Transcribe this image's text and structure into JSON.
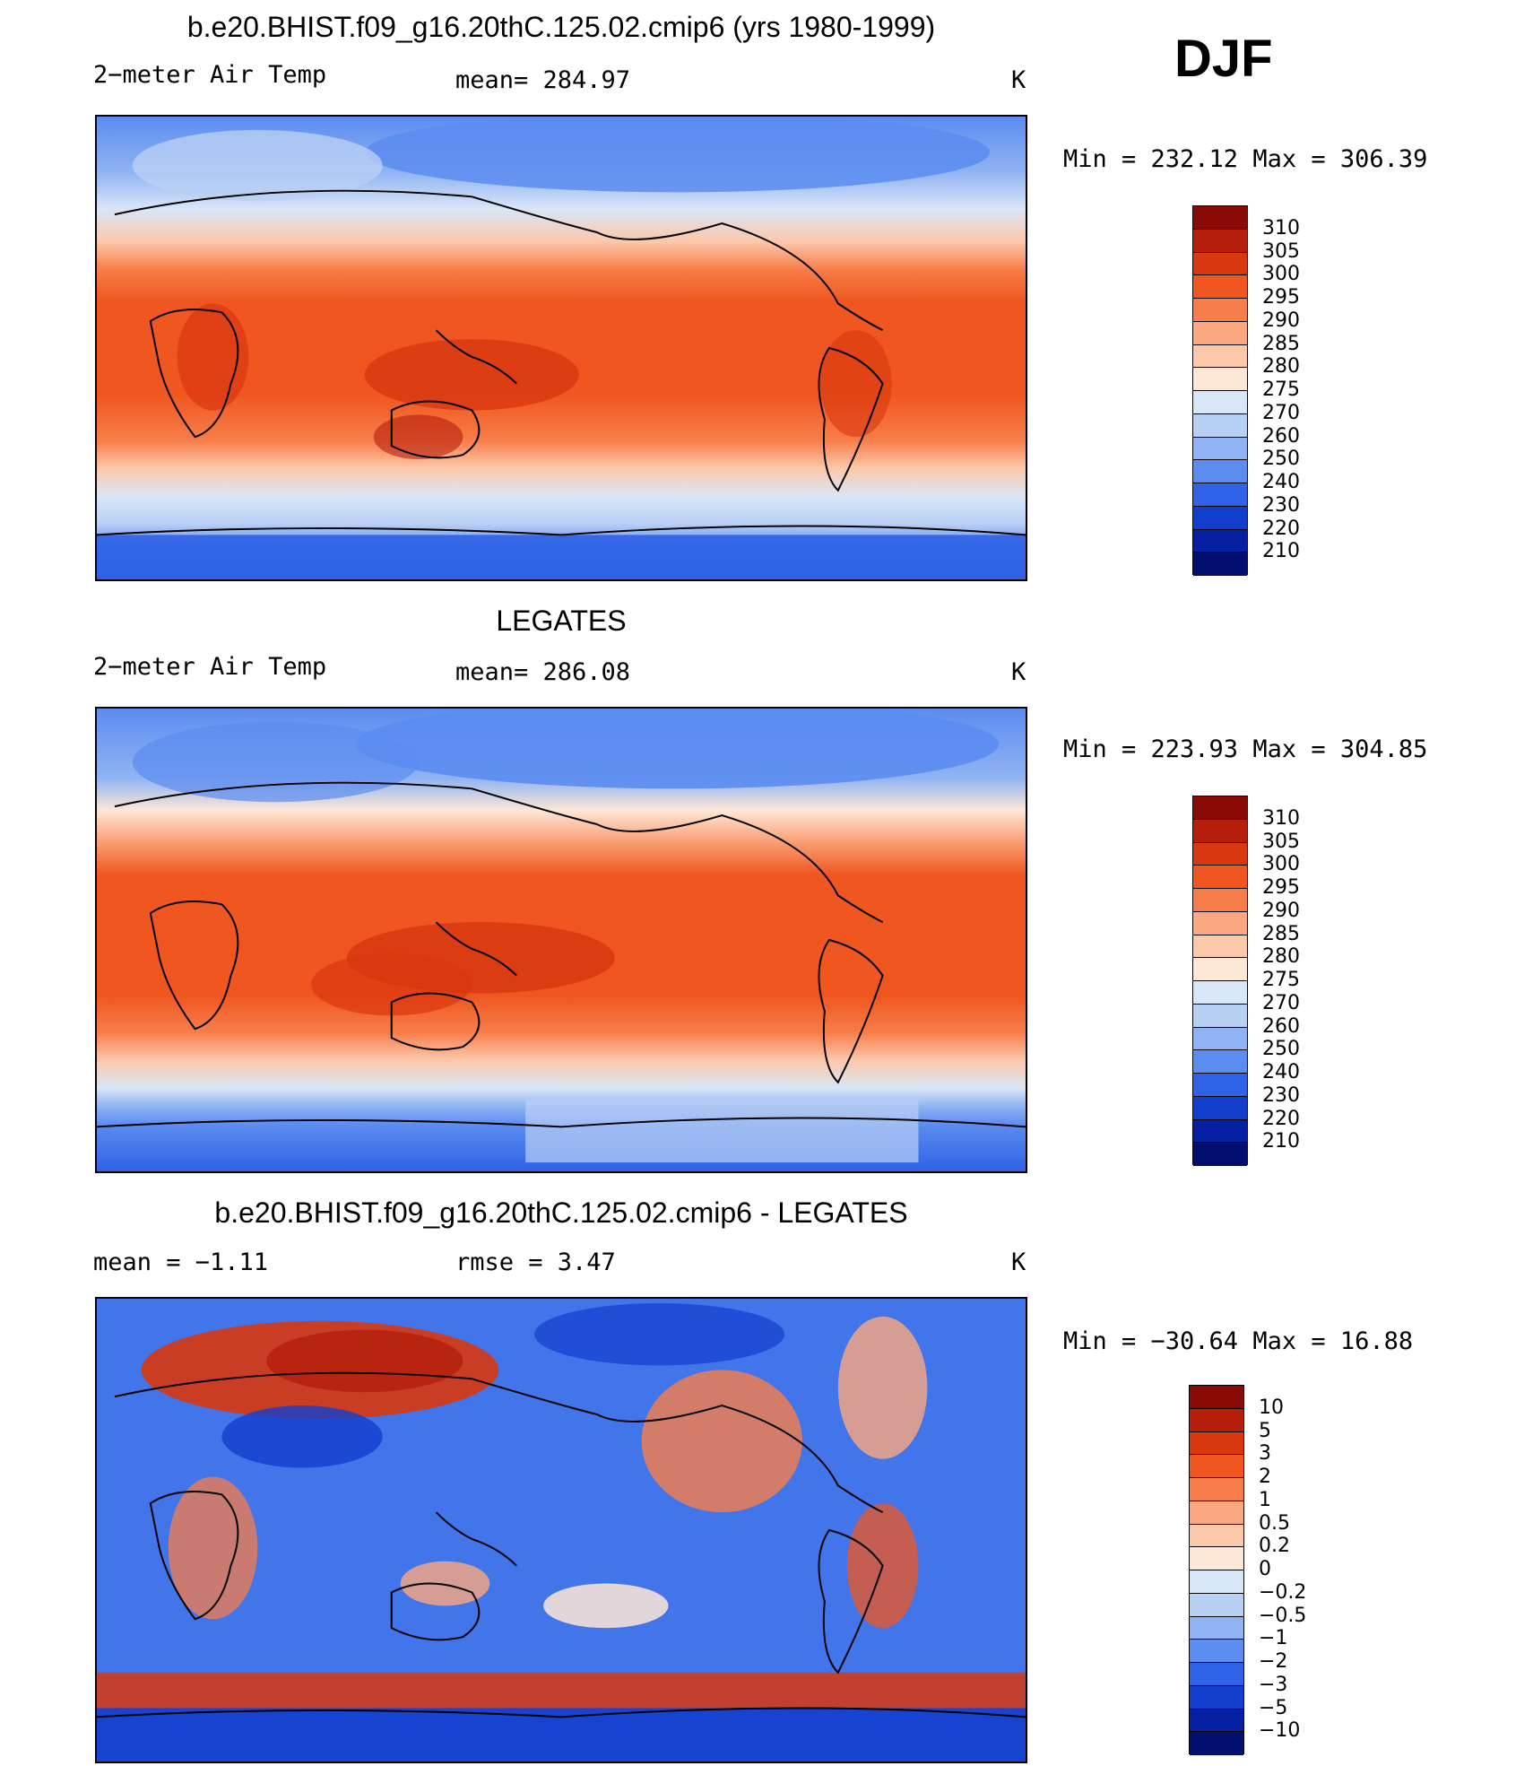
{
  "season": "DJF",
  "panels": [
    {
      "title": "b.e20.BHIST.f09_g16.20thC.125.02.cmip6 (yrs 1980-1999)",
      "left_label": "2−meter Air Temp",
      "center_label": "mean= 284.97",
      "units": "K",
      "minmax": "Min  =  232.12  Max  =  306.39",
      "colorbar_labels": [
        "310",
        "305",
        "300",
        "295",
        "290",
        "285",
        "280",
        "275",
        "270",
        "260",
        "250",
        "240",
        "230",
        "220",
        "210"
      ],
      "colors": [
        "#8a0a06",
        "#b51e0b",
        "#d8370f",
        "#f0561f",
        "#f77e4a",
        "#fba77f",
        "#fcc8aa",
        "#fde7d6",
        "#d9e6f7",
        "#b9d0f5",
        "#90b3f3",
        "#5b8cf0",
        "#2f62e6",
        "#123ecd",
        "#0620a4",
        "#020f6e"
      ]
    },
    {
      "title": "LEGATES",
      "left_label": "2−meter Air Temp",
      "center_label": "mean= 286.08",
      "units": "K",
      "minmax": "Min  =  223.93  Max  =  304.85",
      "colorbar_labels": [
        "310",
        "305",
        "300",
        "295",
        "290",
        "285",
        "280",
        "275",
        "270",
        "260",
        "250",
        "240",
        "230",
        "220",
        "210"
      ],
      "colors": [
        "#8a0a06",
        "#b51e0b",
        "#d8370f",
        "#f0561f",
        "#f77e4a",
        "#fba77f",
        "#fcc8aa",
        "#fde7d6",
        "#d9e6f7",
        "#b9d0f5",
        "#90b3f3",
        "#5b8cf0",
        "#2f62e6",
        "#123ecd",
        "#0620a4",
        "#020f6e"
      ]
    },
    {
      "title": "b.e20.BHIST.f09_g16.20thC.125.02.cmip6 - LEGATES",
      "left_label": "mean  =    −1.11",
      "center_label": "rmse  =     3.47",
      "units": "K",
      "minmax": "Min  =  −30.64  Max  =    16.88",
      "colorbar_labels": [
        "10",
        "5",
        "3",
        "2",
        "1",
        "0.5",
        "0.2",
        "0",
        "−0.2",
        "−0.5",
        "−1",
        "−2",
        "−3",
        "−5",
        "−10"
      ],
      "colors": [
        "#8a0a06",
        "#b51e0b",
        "#d8370f",
        "#f0561f",
        "#f77e4a",
        "#fba77f",
        "#fcc8aa",
        "#fde7d6",
        "#d9e6f7",
        "#b9d0f5",
        "#90b3f3",
        "#5b8cf0",
        "#2f62e6",
        "#123ecd",
        "#0620a4",
        "#020f6e"
      ]
    }
  ]
}
